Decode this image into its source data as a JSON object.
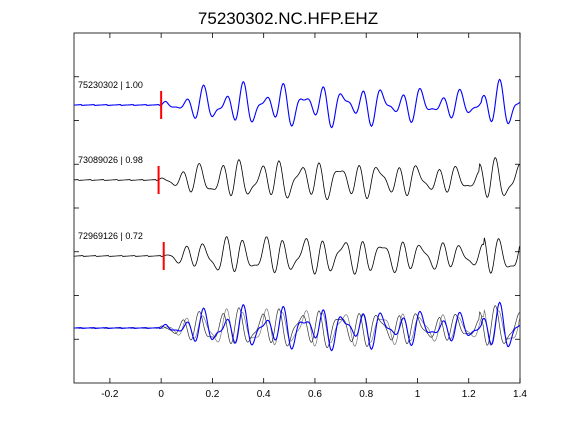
{
  "chart_data": {
    "type": "line",
    "title": "75230302.NC.HFP.EHZ",
    "xlabel": "",
    "ylabel": "",
    "xlim": [
      -0.34,
      1.4
    ],
    "xticks": [
      -0.2,
      0,
      0.2,
      0.4,
      0.6,
      0.8,
      1,
      1.2,
      1.4
    ],
    "xtick_labels": [
      "-0.2",
      "0",
      "0.2",
      "0.4",
      "0.6",
      "0.8",
      "1",
      "1.2",
      "1.4"
    ],
    "yticks_count": 7,
    "grid": false,
    "legend": "none",
    "traces": [
      {
        "label": "75230302 | 1.00",
        "color": "#0000ff",
        "pick_time": 0.0,
        "shift": 0.0
      },
      {
        "label": "73089026 | 0.98",
        "color": "#000000",
        "pick_time": -0.01,
        "shift": -0.01
      },
      {
        "label": "72969126 | 0.72",
        "color": "#000000",
        "pick_time": 0.01,
        "shift": 0.01
      }
    ],
    "overlay": {
      "description_series": [
        "75230302",
        "73089026",
        "72969126"
      ]
    },
    "pick_color": "#ff0000"
  }
}
